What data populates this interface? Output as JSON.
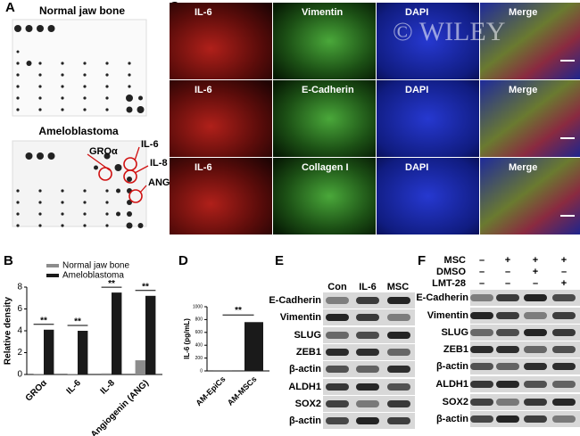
{
  "panel_labels": [
    "A",
    "B",
    "C",
    "D",
    "E",
    "F"
  ],
  "panel_a": {
    "top_title": "Normal jaw bone",
    "bottom_title": "Ameloblastoma",
    "markers": [
      "GROα",
      "IL-6",
      "IL-8",
      "ANG"
    ]
  },
  "panel_c": {
    "watermark": "© WILEY",
    "rows": [
      [
        "IL-6",
        "Vimentin",
        "DAPI",
        "Merge"
      ],
      [
        "IL-6",
        "E-Cadherin",
        "DAPI",
        "Merge"
      ],
      [
        "IL-6",
        "Collagen I",
        "DAPI",
        "Merge"
      ]
    ]
  },
  "chart_data": [
    {
      "type": "bar",
      "y_label": "Relative density",
      "categories": [
        "GROα",
        "IL-6",
        "IL-8",
        "Angiogenin (ANG)"
      ],
      "series": [
        {
          "name": "Normal jaw bone",
          "color": "#8c8c8c",
          "values": [
            0.05,
            0.05,
            0.1,
            1.3
          ]
        },
        {
          "name": "Ameloblastoma",
          "color": "#1a1a1a",
          "values": [
            4.1,
            4.0,
            7.5,
            7.2
          ]
        }
      ],
      "significance": [
        "**",
        "**",
        "**",
        "**"
      ],
      "legend": "top",
      "ylim": [
        0,
        8
      ],
      "yticks": [
        0,
        2,
        4,
        6,
        8
      ]
    },
    {
      "type": "bar",
      "y_label": "IL-6 (pg/mL)",
      "categories": [
        "AM-EpiCs",
        "AM-MSCs"
      ],
      "values": [
        5,
        760
      ],
      "color": "#1a1a1a",
      "significance": "**",
      "ylim": [
        0,
        1000
      ],
      "yticks": [
        0,
        200,
        400,
        600,
        800,
        1000
      ]
    }
  ],
  "panel_e": {
    "columns": [
      "Con",
      "IL-6",
      "MSC"
    ],
    "rows": [
      "E-Cadherin",
      "Vimentin",
      "SLUG",
      "ZEB1",
      "β-actin",
      "ALDH1",
      "SOX2",
      "β-actin"
    ]
  },
  "panel_f": {
    "conditions": [
      {
        "name": "MSC",
        "signs": [
          "–",
          "+",
          "+",
          "+"
        ]
      },
      {
        "name": "DMSO",
        "signs": [
          "–",
          "–",
          "+",
          "–"
        ]
      },
      {
        "name": "LMT-28",
        "signs": [
          "–",
          "–",
          "–",
          "+"
        ]
      }
    ],
    "rows": [
      "E-Cadherin",
      "Vimentin",
      "SLUG",
      "ZEB1",
      "β-actin",
      "ALDH1",
      "SOX2",
      "β-actin"
    ]
  }
}
